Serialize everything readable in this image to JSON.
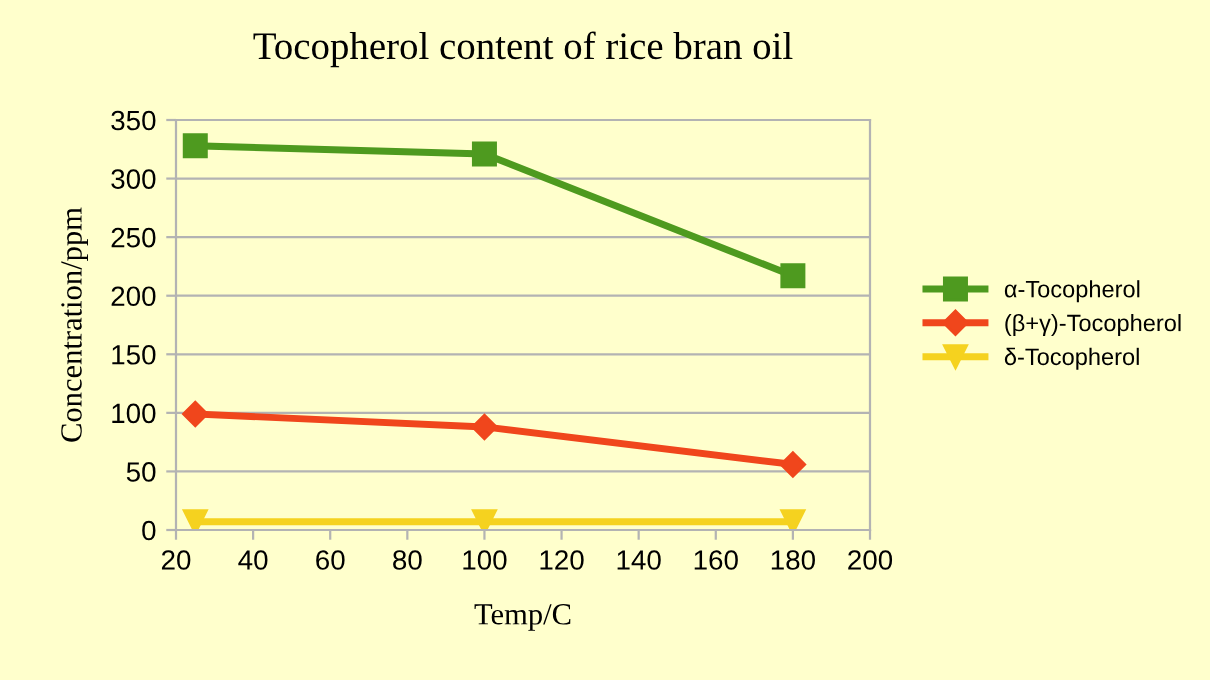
{
  "chart_data": {
    "type": "line",
    "title": "Tocopherol content of rice bran oil",
    "xlabel": "Temp/C",
    "ylabel": "Concentration/ppm",
    "x": [
      25,
      100,
      180
    ],
    "series": [
      {
        "name": "α-Tocopherol",
        "color": "#4e9a1f",
        "values": [
          328,
          321,
          217
        ],
        "marker": "square"
      },
      {
        "name": "(β+γ)-Tocopherol",
        "color": "#f0461c",
        "values": [
          99,
          88,
          56
        ],
        "marker": "diamond"
      },
      {
        "name": "δ-Tocopherol",
        "color": "#f5d21f",
        "values": [
          7,
          7,
          7
        ],
        "marker": "triangle"
      }
    ],
    "xlim": [
      20,
      200
    ],
    "xticks": [
      20,
      40,
      60,
      80,
      100,
      120,
      140,
      160,
      180,
      200
    ],
    "ylim": [
      0,
      350
    ],
    "yticks": [
      0,
      50,
      100,
      150,
      200,
      250,
      300,
      350
    ],
    "grid": "y",
    "legend": "right",
    "line_style": "solid"
  }
}
